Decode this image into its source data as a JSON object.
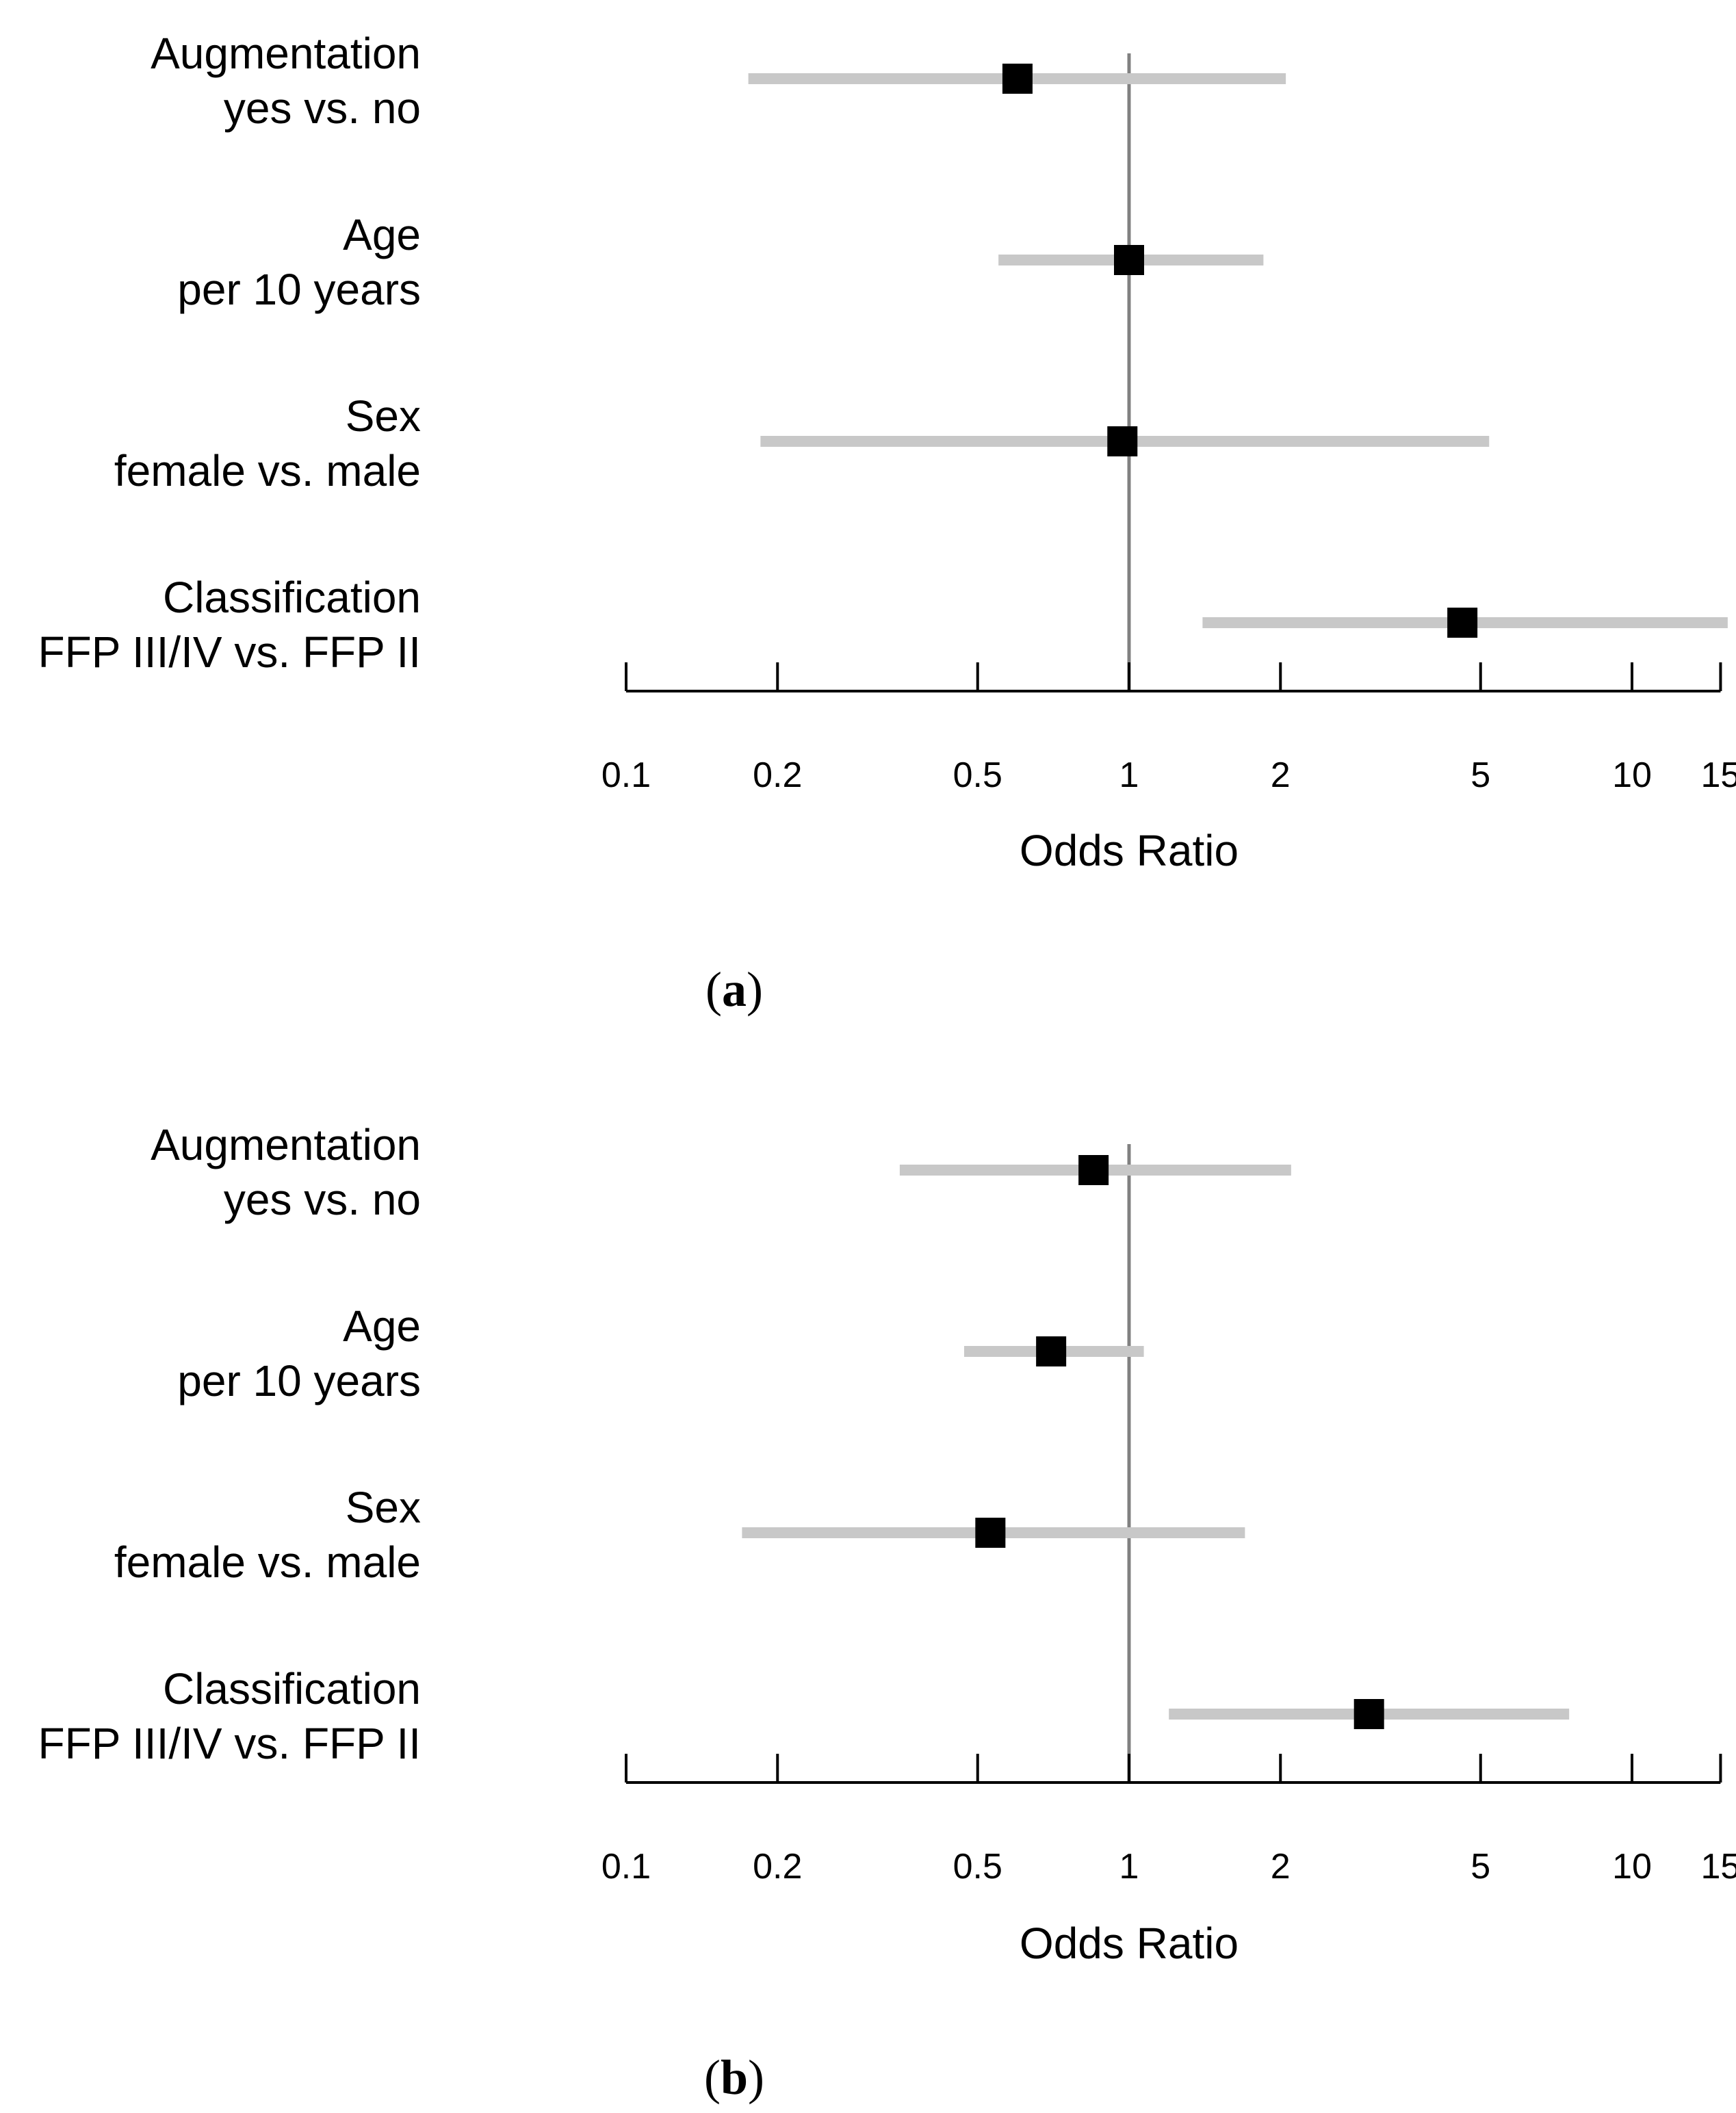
{
  "colors": {
    "ci_bar": "#c8c8c8",
    "reference_line": "#808080",
    "point": "#000000",
    "axis": "#000000"
  },
  "chart_data": [
    {
      "type": "forest",
      "panel": "a",
      "caption": {
        "open": "(",
        "letter": "a",
        "close": ")"
      },
      "xlabel": "Odds Ratio",
      "x_scale": "log",
      "xlim": [
        0.1,
        15
      ],
      "x_ticks": [
        0.1,
        0.2,
        0.5,
        1,
        2,
        5,
        10,
        15
      ],
      "x_tick_labels": [
        "0.1",
        "0.2",
        "0.5",
        "1",
        "2",
        "5",
        "10",
        "15"
      ],
      "reference_value": 1,
      "rows": [
        {
          "label": [
            "Augmentation",
            "yes vs. no"
          ],
          "estimate": 0.6,
          "ci_low": 0.175,
          "ci_high": 2.05
        },
        {
          "label": [
            "Age",
            "per 10 years"
          ],
          "estimate": 1.0,
          "ci_low": 0.55,
          "ci_high": 1.85
        },
        {
          "label": [
            "Sex",
            "female vs. male"
          ],
          "estimate": 0.97,
          "ci_low": 0.185,
          "ci_high": 5.2
        },
        {
          "label": [
            "Classification",
            "FFP III/IV vs. FFP II"
          ],
          "estimate": 4.6,
          "ci_low": 1.4,
          "ci_high": 15.5
        }
      ]
    },
    {
      "type": "forest",
      "panel": "b",
      "caption": {
        "open": "(",
        "letter": "b",
        "close": ")"
      },
      "xlabel": "Odds Ratio",
      "x_scale": "log",
      "xlim": [
        0.1,
        15
      ],
      "x_ticks": [
        0.1,
        0.2,
        0.5,
        1,
        2,
        5,
        10,
        15
      ],
      "x_tick_labels": [
        "0.1",
        "0.2",
        "0.5",
        "1",
        "2",
        "5",
        "10",
        "15"
      ],
      "reference_value": 1,
      "rows": [
        {
          "label": [
            "Augmentation",
            "yes vs. no"
          ],
          "estimate": 0.85,
          "ci_low": 0.35,
          "ci_high": 2.1
        },
        {
          "label": [
            "Age",
            "per 10 years"
          ],
          "estimate": 0.7,
          "ci_low": 0.47,
          "ci_high": 1.07
        },
        {
          "label": [
            "Sex",
            "female vs. male"
          ],
          "estimate": 0.53,
          "ci_low": 0.17,
          "ci_high": 1.7
        },
        {
          "label": [
            "Classification",
            "FFP III/IV vs. FFP II"
          ],
          "estimate": 3.0,
          "ci_low": 1.2,
          "ci_high": 7.5
        }
      ]
    }
  ]
}
